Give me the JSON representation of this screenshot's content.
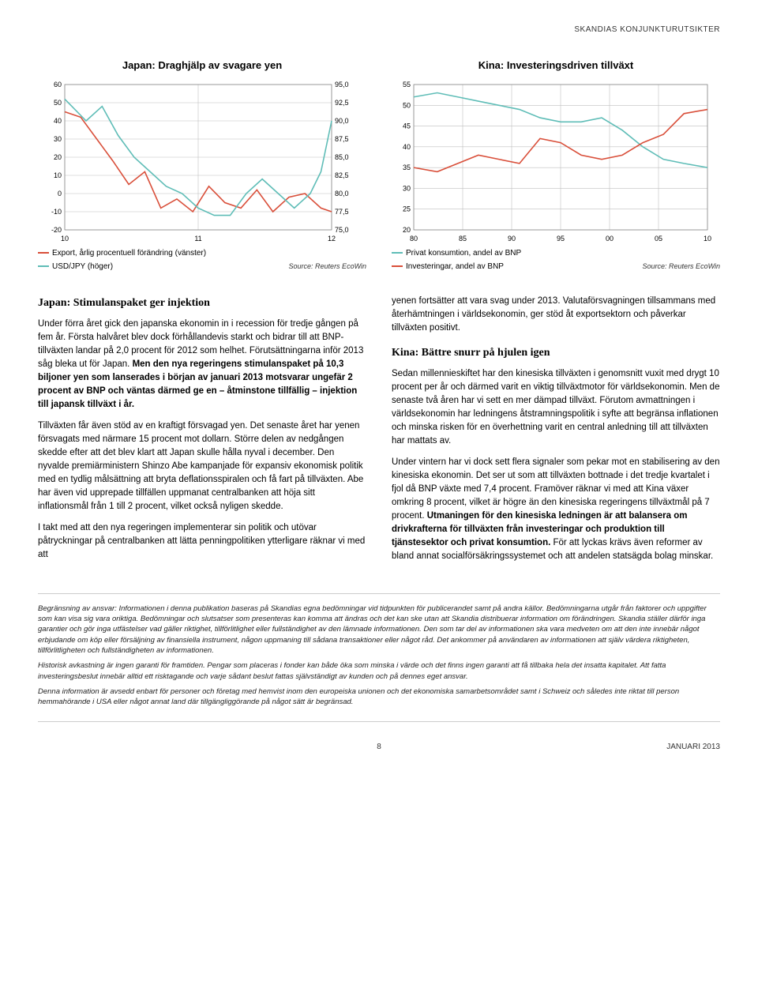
{
  "header": "SKANDIAS KONJUNKTURUTSIKTER",
  "chart_left": {
    "type": "line-dual-axis",
    "title": "Japan: Draghjälp av svagare yen",
    "x_ticks": [
      "10",
      "11",
      "12"
    ],
    "left_axis": {
      "ticks": [
        -20,
        -10,
        0,
        10,
        20,
        30,
        40,
        50,
        60
      ],
      "min": -20,
      "max": 60
    },
    "right_axis": {
      "ticks": [
        75.0,
        77.5,
        80.0,
        82.5,
        85.0,
        87.5,
        90.0,
        92.5,
        95.0
      ],
      "labels": [
        "75,0",
        "77,5",
        "80,0",
        "82,5",
        "85,0",
        "87,5",
        "90,0",
        "92,5",
        "95,0"
      ],
      "min": 75.0,
      "max": 95.0
    },
    "series": [
      {
        "name": "Export, årlig procentuell förändring (vänster)",
        "color": "#d94f3a",
        "axis": "left",
        "points": [
          [
            0,
            45
          ],
          [
            0.06,
            42
          ],
          [
            0.12,
            30
          ],
          [
            0.18,
            18
          ],
          [
            0.24,
            5
          ],
          [
            0.3,
            12
          ],
          [
            0.36,
            -8
          ],
          [
            0.42,
            -3
          ],
          [
            0.48,
            -10
          ],
          [
            0.54,
            4
          ],
          [
            0.6,
            -5
          ],
          [
            0.66,
            -8
          ],
          [
            0.72,
            2
          ],
          [
            0.78,
            -10
          ],
          [
            0.84,
            -2
          ],
          [
            0.9,
            0
          ],
          [
            0.96,
            -8
          ],
          [
            1.0,
            -10
          ]
        ]
      },
      {
        "name": "USD/JPY (höger)",
        "color": "#5fbdb7",
        "axis": "right",
        "points": [
          [
            0,
            93
          ],
          [
            0.08,
            90
          ],
          [
            0.14,
            92
          ],
          [
            0.2,
            88
          ],
          [
            0.26,
            85
          ],
          [
            0.32,
            83
          ],
          [
            0.38,
            81
          ],
          [
            0.44,
            80
          ],
          [
            0.5,
            78
          ],
          [
            0.56,
            77
          ],
          [
            0.62,
            77
          ],
          [
            0.68,
            80
          ],
          [
            0.74,
            82
          ],
          [
            0.8,
            80
          ],
          [
            0.86,
            78
          ],
          [
            0.92,
            80
          ],
          [
            0.96,
            83
          ],
          [
            1.0,
            90
          ]
        ]
      }
    ],
    "legend": [
      {
        "swatch": "#d94f3a",
        "label": "Export, årlig procentuell förändring (vänster)"
      },
      {
        "swatch": "#5fbdb7",
        "label": "USD/JPY (höger)"
      }
    ],
    "source": "Source: Reuters EcoWin",
    "grid_color": "#bfbfbf",
    "background": "#ffffff",
    "tick_fontsize": 9
  },
  "chart_right": {
    "type": "line",
    "title": "Kina: Investeringsdriven tillväxt",
    "x_ticks": [
      "80",
      "85",
      "90",
      "95",
      "00",
      "05",
      "10"
    ],
    "y_axis": {
      "ticks": [
        20,
        25,
        30,
        35,
        40,
        45,
        50,
        55
      ],
      "min": 20,
      "max": 55
    },
    "series": [
      {
        "name": "Privat konsumtion, andel av BNP",
        "color": "#5fbdb7",
        "points": [
          [
            0,
            52
          ],
          [
            0.08,
            53
          ],
          [
            0.15,
            52
          ],
          [
            0.22,
            51
          ],
          [
            0.29,
            50
          ],
          [
            0.36,
            49
          ],
          [
            0.43,
            47
          ],
          [
            0.5,
            46
          ],
          [
            0.57,
            46
          ],
          [
            0.64,
            47
          ],
          [
            0.71,
            44
          ],
          [
            0.78,
            40
          ],
          [
            0.85,
            37
          ],
          [
            0.92,
            36
          ],
          [
            1.0,
            35
          ]
        ]
      },
      {
        "name": "Investeringar, andel av BNP",
        "color": "#d94f3a",
        "points": [
          [
            0,
            35
          ],
          [
            0.08,
            34
          ],
          [
            0.15,
            36
          ],
          [
            0.22,
            38
          ],
          [
            0.29,
            37
          ],
          [
            0.36,
            36
          ],
          [
            0.43,
            42
          ],
          [
            0.5,
            41
          ],
          [
            0.57,
            38
          ],
          [
            0.64,
            37
          ],
          [
            0.71,
            38
          ],
          [
            0.78,
            41
          ],
          [
            0.85,
            43
          ],
          [
            0.92,
            48
          ],
          [
            1.0,
            49
          ]
        ]
      }
    ],
    "legend": [
      {
        "swatch": "#5fbdb7",
        "label": "Privat konsumtion, andel av BNP"
      },
      {
        "swatch": "#d94f3a",
        "label": "Investeringar, andel av BNP"
      }
    ],
    "source": "Source: Reuters EcoWin",
    "grid_color": "#bfbfbf",
    "background": "#ffffff",
    "tick_fontsize": 9
  },
  "col_left": {
    "heading": "Japan: Stimulanspaket ger injektion",
    "p1a": "Under förra året gick den japanska ekonomin in i recession för tredje gången på fem år. Första halvåret blev dock förhållandevis starkt och bidrar till att BNP-tillväxten landar på 2,0 procent för 2012 som helhet. Förutsättningarna inför 2013 såg bleka ut för Japan. ",
    "p1b_bold": "Men den nya regeringens stimulanspaket på 10,3 biljoner yen som lanserades i början av januari 2013 motsvarar ungefär 2 procent av BNP och väntas därmed ge en – åtminstone tillfällig – injektion till japansk tillväxt i år.",
    "p2": "Tillväxten får även stöd av en kraftigt försvagad yen. Det senaste året har yenen försvagats med närmare 15 procent mot dollarn. Större delen av nedgången skedde efter att det blev klart att Japan skulle hålla nyval i december. Den nyvalde premiärministern Shinzo Abe kampanjade för expansiv ekonomisk politik med en tydlig målsättning att bryta deflationsspiralen och få fart på tillväxten. Abe har även vid upprepade tillfällen uppmanat centralbanken att höja sitt inflationsmål från 1 till 2 procent, vilket också nyligen skedde.",
    "p3": "I takt med att den nya regeringen implementerar sin politik och utövar påtryckningar på centralbanken att lätta penningpolitiken ytterligare räknar vi med att"
  },
  "col_right": {
    "p1": "yenen fortsätter att vara svag under 2013. Valutaförsvagningen tillsammans med återhämtningen i världsekonomin, ger stöd åt exportsektorn och påverkar tillväxten positivt.",
    "heading": "Kina: Bättre snurr på hjulen igen",
    "p2": "Sedan millennieskiftet har den kinesiska tillväxten i genomsnitt vuxit med drygt 10 procent per år och därmed varit en viktig tillväxtmotor för världsekonomin. Men de senaste två åren har vi sett en mer dämpad tillväxt. Förutom avmattningen i världsekonomin har ledningens åtstramningspolitik i syfte att begränsa inflationen och minska risken för en överhettning varit en central anledning till att tillväxten har mattats av.",
    "p3a": "Under vintern har vi dock sett flera signaler som pekar mot en stabilisering av den kinesiska ekonomin. Det ser ut som att tillväxten bottnade i det tredje kvartalet i fjol då BNP växte med 7,4 procent. Framöver räknar vi med att Kina växer omkring 8 procent, vilket är högre än den kinesiska regeringens tillväxtmål på 7 procent. ",
    "p3b_bold": "Utmaningen för den kinesiska ledningen är att balansera om drivkrafterna för tillväxten från investeringar och produktion till tjänstesektor och privat konsumtion.",
    "p3c": " För att lyckas krävs även reformer av bland annat socialförsäkringssystemet och att andelen statsägda bolag minskar."
  },
  "disclaimer": {
    "p1": "Begränsning av ansvar: Informationen i denna publikation baseras på Skandias egna bedömningar vid tidpunkten för publicerandet samt på andra källor. Bedömningarna utgår från faktorer och uppgifter som kan visa sig vara oriktiga. Bedömningar och slutsatser som presenteras kan komma att ändras och det kan ske utan att Skandia distribuerar information om förändringen. Skandia ställer därför inga garantier och gör inga utfästelser vad gäller riktighet, tillförlitlighet eller fullständighet av den lämnade informationen. Den som tar del av informationen ska vara medveten om att den inte innebär något erbjudande om köp eller försäljning av finansiella instrument, någon uppmaning till sådana transaktioner eller något råd. Det ankommer på användaren av informationen att själv värdera riktigheten, tillförlitligheten och fullständigheten av informationen.",
    "p2": "Historisk avkastning är ingen garanti för framtiden. Pengar som placeras i fonder kan både öka som minska i värde och det finns ingen garanti att få tillbaka hela det insatta kapitalet. Att fatta investeringsbeslut innebär alltid ett risktagande och varje sådant beslut fattas självständigt av kunden och på dennes eget ansvar.",
    "p3": "Denna information är avsedd enbart för personer och företag med hemvist inom den europeiska unionen och det ekonomiska samarbetsområdet samt i Schweiz och således inte riktat till person hemmahörande i USA eller något annat land där tillgängliggörande på något sätt är begränsad."
  },
  "footer": {
    "page": "8",
    "right": "JANUARI 2013"
  }
}
